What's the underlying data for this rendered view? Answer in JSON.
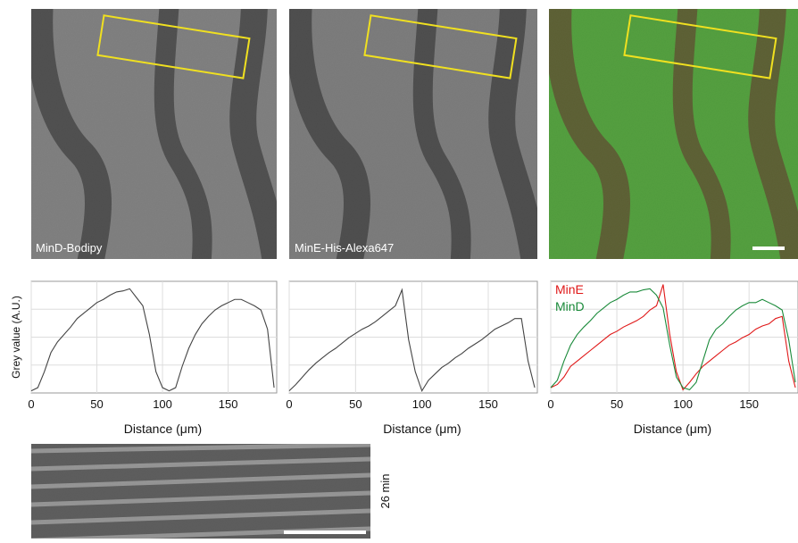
{
  "images": {
    "labels": [
      "MinD-Bodipy",
      "MinE-His-Alexa647"
    ],
    "kymograph_label": "26 min"
  },
  "chart_data": [
    {
      "type": "line",
      "y_label": "Grey value (A.U.)",
      "x_label": "Distance (μm)",
      "x": [
        0,
        5,
        10,
        15,
        20,
        25,
        30,
        35,
        40,
        45,
        50,
        55,
        60,
        65,
        70,
        75,
        80,
        85,
        90,
        95,
        100,
        105,
        110,
        115,
        120,
        125,
        130,
        135,
        140,
        145,
        150,
        155,
        160,
        165,
        170,
        175,
        180,
        185
      ],
      "series": [
        {
          "color": "#444444",
          "values": [
            2,
            5,
            20,
            38,
            48,
            55,
            62,
            70,
            75,
            80,
            85,
            88,
            92,
            95,
            96,
            98,
            90,
            82,
            55,
            20,
            5,
            2,
            5,
            25,
            42,
            55,
            65,
            72,
            78,
            82,
            85,
            88,
            88,
            85,
            82,
            78,
            60,
            5
          ]
        }
      ],
      "xlim": [
        0,
        187
      ],
      "ylim": [
        0,
        105
      ],
      "xticks": [
        0,
        50,
        100,
        150
      ],
      "grid": true
    },
    {
      "type": "line",
      "x_label": "Distance (μm)",
      "x": [
        0,
        5,
        10,
        15,
        20,
        25,
        30,
        35,
        40,
        45,
        50,
        55,
        60,
        65,
        70,
        75,
        80,
        85,
        90,
        95,
        100,
        105,
        110,
        115,
        120,
        125,
        130,
        135,
        140,
        145,
        150,
        155,
        160,
        165,
        170,
        175,
        180,
        185
      ],
      "series": [
        {
          "color": "#444444",
          "values": [
            2,
            8,
            15,
            22,
            28,
            33,
            38,
            42,
            47,
            52,
            56,
            60,
            63,
            67,
            72,
            77,
            82,
            97,
            50,
            20,
            2,
            12,
            18,
            24,
            28,
            33,
            37,
            42,
            46,
            50,
            55,
            60,
            63,
            66,
            70,
            70,
            30,
            5
          ]
        }
      ],
      "xlim": [
        0,
        187
      ],
      "ylim": [
        0,
        105
      ],
      "xticks": [
        0,
        50,
        100,
        150
      ],
      "grid": true
    },
    {
      "type": "line",
      "x_label": "Distance (μm)",
      "x": [
        0,
        5,
        10,
        15,
        20,
        25,
        30,
        35,
        40,
        45,
        50,
        55,
        60,
        65,
        70,
        75,
        80,
        85,
        90,
        95,
        100,
        105,
        110,
        115,
        120,
        125,
        130,
        135,
        140,
        145,
        150,
        155,
        160,
        165,
        170,
        175,
        180,
        185
      ],
      "series": [
        {
          "name": "MinE",
          "color": "#e01818",
          "values": [
            5,
            8,
            15,
            25,
            30,
            35,
            40,
            45,
            50,
            55,
            58,
            62,
            65,
            68,
            72,
            78,
            82,
            102,
            55,
            20,
            3,
            10,
            18,
            25,
            30,
            35,
            40,
            45,
            48,
            52,
            55,
            60,
            63,
            65,
            70,
            72,
            30,
            5
          ]
        },
        {
          "name": "MinD",
          "color": "#1a8a3a",
          "values": [
            5,
            12,
            30,
            45,
            55,
            62,
            68,
            75,
            80,
            85,
            88,
            92,
            95,
            95,
            97,
            98,
            92,
            80,
            45,
            15,
            5,
            3,
            10,
            30,
            50,
            60,
            65,
            72,
            78,
            82,
            85,
            85,
            88,
            85,
            82,
            78,
            50,
            10
          ]
        }
      ],
      "xlim": [
        0,
        187
      ],
      "ylim": [
        0,
        105
      ],
      "xticks": [
        0,
        50,
        100,
        150
      ],
      "grid": true,
      "legend": "upper left"
    }
  ]
}
